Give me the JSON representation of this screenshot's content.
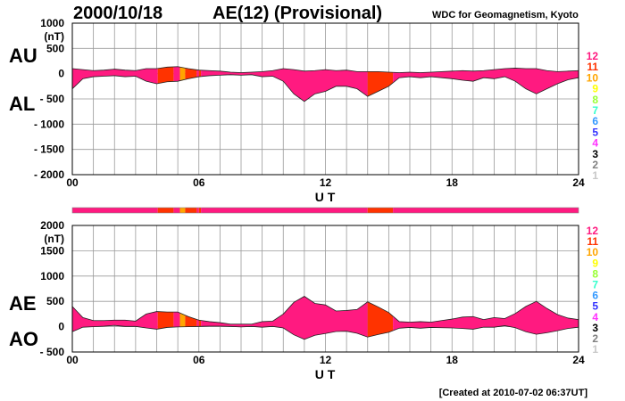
{
  "header": {
    "date": "2000/10/18",
    "title": "AE(12) (Provisional)",
    "source": "WDC for Geomagnetism, Kyoto"
  },
  "footer": {
    "created": "[Created at 2010-07-02 06:37UT]"
  },
  "station_legend": {
    "labels": [
      "12",
      "11",
      "10",
      "9",
      "8",
      "7",
      "6",
      "5",
      "4",
      "3",
      "2",
      "1"
    ],
    "colors": [
      "#ff1a80",
      "#ff3300",
      "#ffa500",
      "#ffff00",
      "#99ff33",
      "#33ffcc",
      "#3399ff",
      "#3333ff",
      "#ff33ff",
      "#000000",
      "#808080",
      "#c8c8c8"
    ]
  },
  "chart_data": [
    {
      "type": "area",
      "title": "AU / AL",
      "series_labels": [
        "AU",
        "AL"
      ],
      "unit_label": "(nT)",
      "xlabel": "U T",
      "xlim": [
        0,
        24
      ],
      "ylim": [
        -2000,
        1000
      ],
      "x_ticks": [
        "00",
        "06",
        "12",
        "18",
        "24"
      ],
      "y_ticks": [
        "1000",
        "500",
        "0",
        "- 500",
        "- 1000",
        "- 1500",
        "- 2000"
      ],
      "grid": true,
      "x": [
        0,
        0.5,
        1,
        1.5,
        2,
        2.5,
        3,
        3.5,
        4,
        4.5,
        5,
        5.5,
        6,
        6.5,
        7,
        7.5,
        8,
        8.5,
        9,
        9.5,
        10,
        10.5,
        11,
        11.5,
        12,
        12.5,
        13,
        13.5,
        14,
        14.5,
        15,
        15.5,
        16,
        16.5,
        17,
        17.5,
        18,
        18.5,
        19,
        19.5,
        20,
        20.5,
        21,
        21.5,
        22,
        22.5,
        23,
        23.5,
        24
      ],
      "series": [
        {
          "name": "AU",
          "values": [
            100,
            80,
            60,
            70,
            90,
            70,
            60,
            100,
            100,
            130,
            140,
            100,
            70,
            60,
            50,
            30,
            20,
            30,
            40,
            60,
            100,
            80,
            50,
            60,
            80,
            60,
            70,
            40,
            40,
            40,
            30,
            20,
            30,
            20,
            30,
            40,
            50,
            60,
            50,
            60,
            80,
            100,
            110,
            100,
            100,
            60,
            40,
            50,
            60
          ]
        },
        {
          "name": "AL",
          "values": [
            -300,
            -100,
            -60,
            -50,
            -40,
            -60,
            -50,
            -150,
            -200,
            -160,
            -150,
            -100,
            -60,
            -40,
            -30,
            -20,
            -30,
            -20,
            -60,
            -50,
            -150,
            -400,
            -550,
            -400,
            -350,
            -250,
            -250,
            -300,
            -450,
            -350,
            -250,
            -80,
            -60,
            -80,
            -60,
            -80,
            -100,
            -130,
            -150,
            -80,
            -100,
            -60,
            -150,
            -300,
            -400,
            -300,
            -200,
            -120,
            -80
          ]
        }
      ]
    },
    {
      "type": "area",
      "title": "AE / AO",
      "series_labels": [
        "AE",
        "AO"
      ],
      "unit_label": "(nT)",
      "xlabel": "U T",
      "xlim": [
        0,
        24
      ],
      "ylim": [
        -500,
        2000
      ],
      "x_ticks": [
        "00",
        "06",
        "12",
        "18",
        "24"
      ],
      "y_ticks": [
        "2000",
        "1500",
        "1000",
        "500",
        "0",
        "- 500"
      ],
      "grid": true
    }
  ],
  "station_segments": [
    {
      "start": 0,
      "end": 4.05,
      "count": 12
    },
    {
      "start": 4.05,
      "end": 4.8,
      "count": 11
    },
    {
      "start": 4.8,
      "end": 5.1,
      "count": 12
    },
    {
      "start": 5.1,
      "end": 5.35,
      "count": 10
    },
    {
      "start": 5.35,
      "end": 5.9,
      "count": 11
    },
    {
      "start": 5.9,
      "end": 6.0,
      "count": 12
    },
    {
      "start": 6.0,
      "end": 6.1,
      "count": 11
    },
    {
      "start": 6.1,
      "end": 14.0,
      "count": 12
    },
    {
      "start": 14.0,
      "end": 15.2,
      "count": 11
    },
    {
      "start": 15.2,
      "end": 24,
      "count": 12
    }
  ]
}
